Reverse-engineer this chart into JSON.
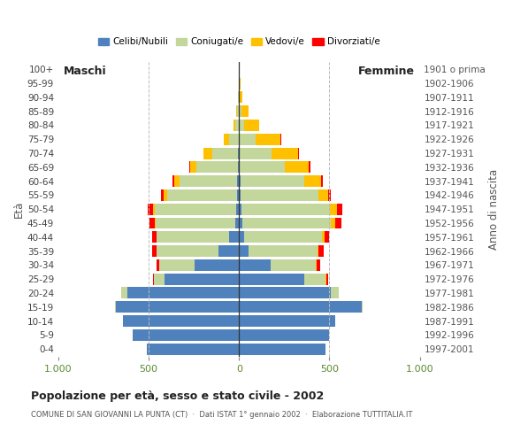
{
  "age_groups": [
    "0-4",
    "5-9",
    "10-14",
    "15-19",
    "20-24",
    "25-29",
    "30-34",
    "35-39",
    "40-44",
    "45-49",
    "50-54",
    "55-59",
    "60-64",
    "65-69",
    "70-74",
    "75-79",
    "80-84",
    "85-89",
    "90-94",
    "95-99",
    "100+"
  ],
  "birth_years": [
    "1997-2001",
    "1992-1996",
    "1987-1991",
    "1982-1986",
    "1977-1981",
    "1972-1976",
    "1967-1971",
    "1962-1966",
    "1957-1961",
    "1952-1956",
    "1947-1951",
    "1942-1946",
    "1937-1941",
    "1932-1936",
    "1927-1931",
    "1922-1926",
    "1917-1921",
    "1912-1916",
    "1907-1911",
    "1902-1906",
    "1901 o prima"
  ],
  "male": {
    "celibe": [
      510,
      590,
      640,
      680,
      620,
      410,
      245,
      115,
      55,
      20,
      15,
      10,
      10,
      5,
      5,
      0,
      0,
      0,
      0,
      0,
      0
    ],
    "coniugato": [
      0,
      0,
      2,
      5,
      30,
      60,
      195,
      340,
      400,
      440,
      450,
      390,
      320,
      230,
      145,
      55,
      20,
      10,
      5,
      2,
      0
    ],
    "vedovo": [
      0,
      0,
      0,
      0,
      0,
      0,
      2,
      2,
      3,
      5,
      10,
      15,
      30,
      35,
      45,
      30,
      10,
      5,
      0,
      0,
      0
    ],
    "divorziato": [
      0,
      0,
      0,
      0,
      0,
      5,
      15,
      25,
      25,
      30,
      30,
      15,
      10,
      5,
      0,
      0,
      0,
      0,
      0,
      0,
      0
    ]
  },
  "female": {
    "celibe": [
      480,
      500,
      530,
      680,
      510,
      360,
      175,
      55,
      30,
      20,
      15,
      10,
      10,
      5,
      5,
      0,
      0,
      0,
      0,
      0,
      0
    ],
    "coniugato": [
      0,
      0,
      2,
      5,
      40,
      120,
      250,
      380,
      430,
      490,
      490,
      430,
      350,
      250,
      175,
      90,
      30,
      15,
      5,
      2,
      0
    ],
    "vedovo": [
      0,
      0,
      0,
      0,
      0,
      2,
      5,
      5,
      15,
      20,
      35,
      55,
      95,
      130,
      145,
      140,
      80,
      40,
      15,
      5,
      2
    ],
    "divorziato": [
      0,
      0,
      0,
      0,
      2,
      10,
      20,
      30,
      25,
      35,
      30,
      15,
      10,
      8,
      5,
      2,
      0,
      0,
      0,
      0,
      0
    ]
  },
  "colors": {
    "celibe": "#4f81bd",
    "coniugato": "#c3d69b",
    "vedovo": "#ffc000",
    "divorziato": "#ff0000"
  },
  "legend_labels": [
    "Celibi/Nubili",
    "Coniugati/e",
    "Vedovi/e",
    "Divorziati/e"
  ],
  "title": "Popolazione per età, sesso e stato civile - 2002",
  "subtitle": "COMUNE DI SAN GIOVANNI LA PUNTA (CT)  ·  Dati ISTAT 1° gennaio 2002  ·  Elaborazione TUTTITALIA.IT",
  "xlim": 1000,
  "xlabel_left": "Maschi",
  "xlabel_right": "Femmine",
  "ylabel_left": "Età",
  "ylabel_right": "Anno di nascita",
  "bg_color": "#ffffff",
  "grid_color": "#bbbbbb"
}
